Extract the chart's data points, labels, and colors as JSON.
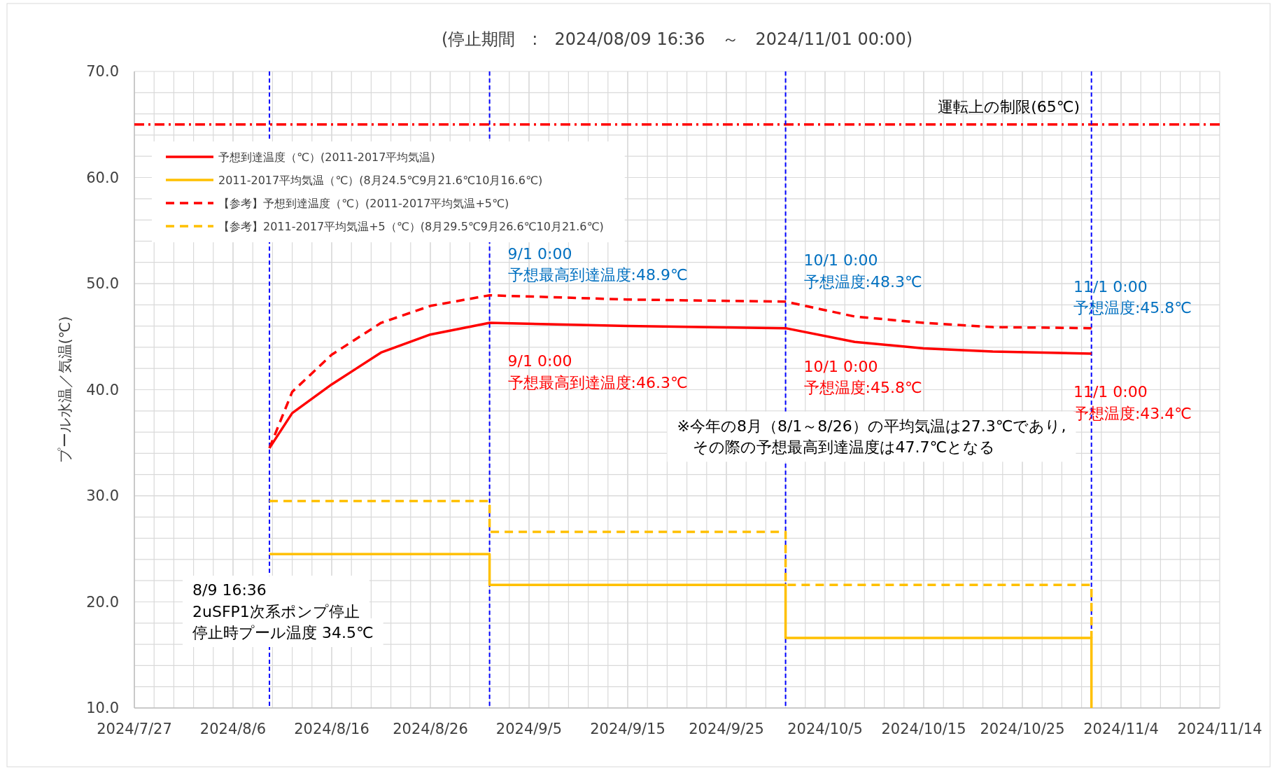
{
  "chart_data": {
    "type": "line",
    "title": "(停止期間　:　2024/08/09 16:36　～　2024/11/01 00:00)",
    "ylabel": "プール水温／気温(℃)",
    "xlim": [
      "2024-07-27",
      "2024-11-14"
    ],
    "xticks": [
      {
        "value": "2024-07-27",
        "label": "2024/7/27"
      },
      {
        "value": "2024-08-06",
        "label": "2024/8/6"
      },
      {
        "value": "2024-08-16",
        "label": "2024/8/16"
      },
      {
        "value": "2024-08-26",
        "label": "2024/8/26"
      },
      {
        "value": "2024-09-05",
        "label": "2024/9/5"
      },
      {
        "value": "2024-09-15",
        "label": "2024/9/15"
      },
      {
        "value": "2024-09-25",
        "label": "2024/9/25"
      },
      {
        "value": "2024-10-05",
        "label": "2024/10/5"
      },
      {
        "value": "2024-10-15",
        "label": "2024/10/15"
      },
      {
        "value": "2024-10-25",
        "label": "2024/10/25"
      },
      {
        "value": "2024-11-04",
        "label": "2024/11/4"
      },
      {
        "value": "2024-11-14",
        "label": "2024/11/14"
      }
    ],
    "ylim": [
      10,
      70
    ],
    "yticks": [
      {
        "value": 10,
        "label": "10.0"
      },
      {
        "value": 20,
        "label": "20.0"
      },
      {
        "value": 30,
        "label": "30.0"
      },
      {
        "value": 40,
        "label": "40.0"
      },
      {
        "value": 50,
        "label": "50.0"
      },
      {
        "value": 60,
        "label": "60.0"
      },
      {
        "value": 70,
        "label": "70.0"
      }
    ],
    "grid": true,
    "legend": "top left",
    "series": [
      {
        "name": "予想到達温度（℃）(2011-2017平均気温)",
        "color": "#ff0000",
        "line_style": "solid",
        "x": [
          "2024-08-09T16:36",
          "2024-08-12",
          "2024-08-16",
          "2024-08-21",
          "2024-08-26",
          "2024-09-01",
          "2024-09-15",
          "2024-10-01",
          "2024-10-08",
          "2024-10-15",
          "2024-10-22",
          "2024-11-01"
        ],
        "values": [
          34.5,
          37.8,
          40.5,
          43.5,
          45.2,
          46.3,
          46.0,
          45.8,
          44.5,
          43.9,
          43.6,
          43.4
        ]
      },
      {
        "name": "2011-2017平均気温（℃）(8月24.5℃9月21.6℃10月16.6℃)",
        "color": "#ffc000",
        "line_style": "solid",
        "x": [
          "2024-08-09T16:36",
          "2024-09-01",
          "2024-09-01",
          "2024-10-01",
          "2024-10-01",
          "2024-11-01",
          "2024-11-01"
        ],
        "values": [
          24.5,
          24.5,
          21.6,
          21.6,
          16.6,
          16.6,
          10.0
        ]
      },
      {
        "name": "【参考】予想到達温度（℃）(2011-2017平均気温+5℃)",
        "color": "#ff0000",
        "line_style": "dashed",
        "x": [
          "2024-08-09T16:36",
          "2024-08-12",
          "2024-08-16",
          "2024-08-21",
          "2024-08-26",
          "2024-09-01",
          "2024-09-15",
          "2024-10-01",
          "2024-10-08",
          "2024-10-15",
          "2024-10-22",
          "2024-11-01"
        ],
        "values": [
          34.5,
          39.8,
          43.3,
          46.3,
          47.9,
          48.9,
          48.5,
          48.3,
          46.9,
          46.3,
          45.9,
          45.8
        ]
      },
      {
        "name": "【参考】2011-2017平均気温+5（℃）(8月29.5℃9月26.6℃10月21.6℃)",
        "color": "#ffc000",
        "line_style": "dashed",
        "x": [
          "2024-08-09T16:36",
          "2024-09-01",
          "2024-09-01",
          "2024-10-01",
          "2024-10-01",
          "2024-11-01",
          "2024-11-01"
        ],
        "values": [
          29.5,
          29.5,
          26.6,
          26.6,
          21.6,
          21.6,
          16.6
        ]
      }
    ],
    "ref_lines": [
      {
        "axis": "y",
        "value": 65,
        "label": "運転上の制限(65℃)",
        "color": "#ff0000",
        "line_style": "dashdot"
      },
      {
        "axis": "x",
        "value": "2024-08-09T16:36",
        "color": "#0000ff",
        "line_style": "dashed"
      },
      {
        "axis": "x",
        "value": "2024-09-01",
        "color": "#0000ff",
        "line_style": "dashed"
      },
      {
        "axis": "x",
        "value": "2024-10-01",
        "color": "#0000ff",
        "line_style": "dashed"
      },
      {
        "axis": "x",
        "value": "2024-11-01",
        "color": "#0000ff",
        "line_style": "dashed"
      }
    ],
    "annotations": [
      {
        "text": "9/1  0:00\n予想最高到達温度:48.9℃",
        "x": "2024-09-01",
        "y": 48.9
      },
      {
        "text": "9/1  0:00\n予想最高到達温度:46.3℃",
        "x": "2024-09-01",
        "y": 46.3
      },
      {
        "text": "10/1  0:00\n予想温度:48.3℃",
        "x": "2024-10-01",
        "y": 48.3
      },
      {
        "text": "10/1  0:00\n予想温度:45.8℃",
        "x": "2024-10-01",
        "y": 45.8
      },
      {
        "text": "11/1  0:00\n予想温度:45.8℃",
        "x": "2024-11-01",
        "y": 45.8
      },
      {
        "text": "11/1  0:00\n予想温度:43.4℃",
        "x": "2024-11-01",
        "y": 43.4
      },
      "8/9 16:36\n2uSFP1次系ポンプ停止",
      "停止時プール温度  34.5℃",
      "※今年の8月（8/1～8/26）の平均気温は27.3℃であり,\n　その際の予想最高到達温度は47.7℃となる"
    ]
  }
}
